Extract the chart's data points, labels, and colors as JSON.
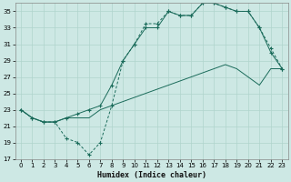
{
  "xlabel": "Humidex (Indice chaleur)",
  "bg_color": "#cde8e4",
  "line_color": "#1a6b5a",
  "grid_color": "#b0d4cc",
  "xlim": [
    -0.5,
    23.5
  ],
  "ylim": [
    17,
    36
  ],
  "yticks": [
    17,
    19,
    21,
    23,
    25,
    27,
    29,
    31,
    33,
    35
  ],
  "xticks": [
    0,
    1,
    2,
    3,
    4,
    5,
    6,
    7,
    8,
    9,
    10,
    11,
    12,
    13,
    14,
    15,
    16,
    17,
    18,
    19,
    20,
    21,
    22,
    23
  ],
  "series1_x": [
    0,
    1,
    2,
    3,
    4,
    5,
    6,
    7,
    8,
    9,
    10,
    11,
    12,
    13,
    14,
    15,
    16,
    17,
    18,
    19,
    20,
    21,
    22,
    23
  ],
  "series1_y": [
    23,
    22,
    21.5,
    21.5,
    19.5,
    19,
    17.5,
    19,
    23.5,
    29,
    31,
    33.5,
    33.5,
    35,
    34.5,
    34.5,
    36,
    36,
    35.5,
    35,
    35,
    33,
    30.5,
    28
  ],
  "series2_x": [
    0,
    1,
    2,
    3,
    4,
    5,
    6,
    7,
    8,
    9,
    10,
    11,
    12,
    13,
    14,
    15,
    16,
    17,
    18,
    19,
    20,
    21,
    22,
    23
  ],
  "series2_y": [
    23,
    22,
    21.5,
    21.5,
    22,
    22,
    22,
    23,
    23.5,
    24,
    24.5,
    25,
    25.5,
    26,
    26.5,
    27,
    27.5,
    28,
    28.5,
    28,
    27,
    26,
    28,
    28
  ],
  "series3_x": [
    0,
    1,
    2,
    3,
    4,
    5,
    6,
    7,
    8,
    9,
    10,
    11,
    12,
    13,
    14,
    15,
    16,
    17,
    18,
    19,
    20,
    21,
    22,
    23
  ],
  "series3_y": [
    23,
    22,
    21.5,
    21.5,
    22,
    22.5,
    23,
    23.5,
    26,
    29,
    31,
    33,
    33,
    35,
    34.5,
    34.5,
    36,
    36,
    35.5,
    35,
    35,
    33,
    30,
    28
  ]
}
